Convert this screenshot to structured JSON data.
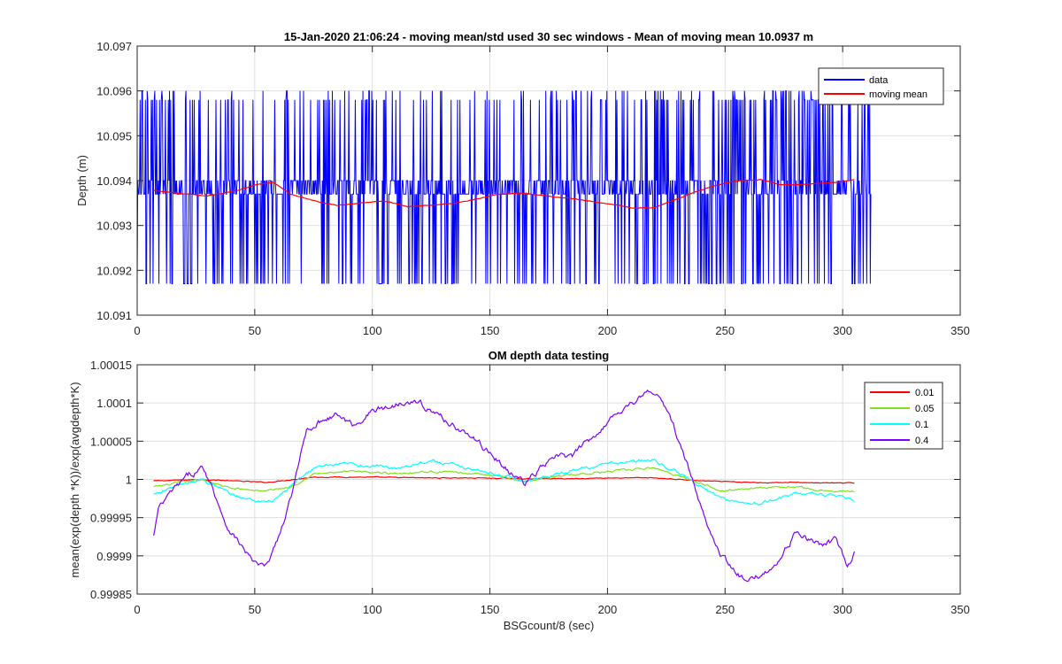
{
  "chart_data": [
    {
      "type": "line",
      "title": "15-Jan-2020 21:06:24 - moving mean/std used 30 sec windows - Mean of moving mean 10.0937 m",
      "xlabel": "",
      "ylabel": "Depth (m)",
      "xlim": [
        0,
        350
      ],
      "ylim": [
        10.091,
        10.097
      ],
      "xticks": [
        0,
        50,
        100,
        150,
        200,
        250,
        300,
        350
      ],
      "xtick_labels": [
        "0",
        "50",
        "100",
        "150",
        "200",
        "250",
        "300",
        "350"
      ],
      "yticks": [
        10.091,
        10.092,
        10.093,
        10.094,
        10.095,
        10.096,
        10.097
      ],
      "ytick_labels": [
        "10.091",
        "10.092",
        "10.093",
        "10.094",
        "10.095",
        "10.096",
        "10.097"
      ],
      "grid": true,
      "legend_position": "top-right",
      "series": [
        {
          "name": "data",
          "color": "#0000ff",
          "style": "noisy",
          "levels": [
            10.0917,
            10.0937,
            10.094,
            10.0958,
            10.096
          ],
          "x": [
            0,
            15,
            30,
            45,
            60,
            70,
            80,
            100,
            110,
            125,
            140,
            150,
            160,
            175,
            190,
            200,
            210,
            220,
            230,
            240,
            250,
            260,
            275,
            290,
            300,
            312
          ],
          "y": [
            10.0938,
            10.0937,
            10.0936,
            10.0939,
            10.094,
            10.0936,
            10.0935,
            10.0936,
            10.0935,
            10.0935,
            10.0936,
            10.0937,
            10.0937,
            10.0937,
            10.0936,
            10.0935,
            10.0935,
            10.0935,
            10.0937,
            10.0938,
            10.0939,
            10.094,
            10.0939,
            10.0939,
            10.0939,
            10.094
          ],
          "density": [
            0.55,
            0.8,
            0.75,
            0.75,
            0.55,
            0.55,
            0.6,
            0.6,
            0.5,
            0.45,
            0.45,
            0.45,
            0.55,
            0.6,
            0.5,
            0.5,
            0.55,
            0.7,
            0.75,
            0.8,
            0.85,
            0.9,
            0.9,
            0.85,
            0.65,
            0.7
          ]
        },
        {
          "name": "moving mean",
          "color": "#ff0000",
          "x": [
            7,
            20,
            30,
            40,
            50,
            58,
            65,
            75,
            85,
            95,
            105,
            115,
            125,
            135,
            145,
            155,
            165,
            175,
            185,
            195,
            205,
            212,
            220,
            230,
            240,
            250,
            258,
            265,
            275,
            285,
            295,
            300,
            305
          ],
          "y": [
            10.09378,
            10.0937,
            10.09366,
            10.09375,
            10.0939,
            10.09396,
            10.0937,
            10.09355,
            10.09345,
            10.0935,
            10.09355,
            10.09342,
            10.09345,
            10.0935,
            10.0936,
            10.0937,
            10.09372,
            10.09365,
            10.0936,
            10.09352,
            10.09345,
            10.09338,
            10.0934,
            10.0936,
            10.0938,
            10.09395,
            10.094,
            10.09402,
            10.0939,
            10.09392,
            10.09395,
            10.09398,
            10.09402
          ]
        }
      ]
    },
    {
      "type": "line",
      "title": "OM depth data testing",
      "xlabel": "BSGcount/8 (sec)",
      "ylabel": "mean(exp(depth *K))/exp(avgdepth*K)",
      "xlim": [
        0,
        350
      ],
      "ylim": [
        0.99985,
        1.00015
      ],
      "xticks": [
        0,
        50,
        100,
        150,
        200,
        250,
        300,
        350
      ],
      "xtick_labels": [
        "0",
        "50",
        "100",
        "150",
        "200",
        "250",
        "300",
        "350"
      ],
      "yticks": [
        0.99985,
        0.9999,
        0.99995,
        1,
        1.00005,
        1.0001,
        1.00015
      ],
      "ytick_labels": [
        "0.99985",
        "0.9999",
        "0.99995",
        "1",
        "1.00005",
        "1.0001",
        "1.00015"
      ],
      "grid": true,
      "legend_position": "top-right",
      "series": [
        {
          "name": "0.01",
          "color": "#ff0000",
          "x": [
            7,
            28,
            55,
            75,
            95,
            120,
            140,
            165,
            185,
            200,
            220,
            240,
            260,
            280,
            305
          ],
          "y": [
            0.999998,
            1.0,
            0.999996,
            1.000003,
            1.000003,
            1.000002,
            1.000002,
            1.000001,
            1.000001,
            1.000002,
            1.000002,
            0.999998,
            0.999996,
            0.999996,
            0.999995
          ]
        },
        {
          "name": "0.05",
          "color": "#80e020",
          "x": [
            7,
            15,
            28,
            40,
            55,
            65,
            75,
            90,
            110,
            120,
            135,
            150,
            165,
            180,
            200,
            220,
            235,
            250,
            265,
            280,
            295,
            305
          ],
          "y": [
            0.99999,
            0.999994,
            1.0,
            0.999988,
            0.999985,
            0.99999,
            1.000007,
            1.00001,
            1.000008,
            1.00001,
            1.00001,
            1.000005,
            0.999998,
            1.000005,
            1.00001,
            1.000015,
            1.0,
            0.999985,
            0.99999,
            0.99999,
            0.999984,
            0.999984
          ]
        },
        {
          "name": "0.1",
          "color": "#00ffff",
          "x": [
            7,
            15,
            28,
            40,
            50,
            58,
            65,
            75,
            90,
            110,
            125,
            140,
            155,
            165,
            175,
            190,
            205,
            220,
            235,
            245,
            255,
            265,
            280,
            295,
            305
          ],
          "y": [
            0.99998,
            0.99999,
            1.0,
            0.99998,
            0.999972,
            0.999972,
            0.99999,
            1.000015,
            1.00002,
            1.000015,
            1.000025,
            1.000015,
            1.000005,
            0.999998,
            1.000005,
            1.000015,
            1.000022,
            1.000025,
            1.0,
            0.99998,
            0.99997,
            0.999968,
            0.999982,
            0.99998,
            0.999972
          ]
        },
        {
          "name": "0.4",
          "color": "#7f00ff",
          "x": [
            7,
            9,
            15,
            22,
            28,
            32,
            38,
            45,
            50,
            55,
            62,
            67,
            72,
            80,
            85,
            92,
            100,
            108,
            115,
            120,
            130,
            140,
            150,
            158,
            165,
            170,
            178,
            185,
            195,
            205,
            210,
            218,
            222,
            228,
            235,
            240,
            248,
            255,
            260,
            265,
            272,
            280,
            290,
            297,
            302,
            305
          ],
          "y": [
            0.999925,
            0.99996,
            0.999985,
            1.000005,
            1.000015,
            0.99999,
            0.99994,
            0.99991,
            0.99989,
            0.999885,
            0.99994,
            0.999995,
            1.000065,
            1.00008,
            1.000085,
            1.00007,
            1.00009,
            1.000095,
            1.000105,
            1.0001,
            1.00008,
            1.00006,
            1.000035,
            1.00001,
            0.999995,
            1.00001,
            1.00003,
            1.00003,
            1.00006,
            1.00009,
            1.0001,
            1.000115,
            1.00011,
            1.00007,
            1.00001,
            0.99996,
            0.999905,
            0.999875,
            0.999865,
            0.999875,
            0.99989,
            0.99993,
            0.999915,
            0.99992,
            0.999885,
            0.999905
          ]
        }
      ]
    }
  ]
}
